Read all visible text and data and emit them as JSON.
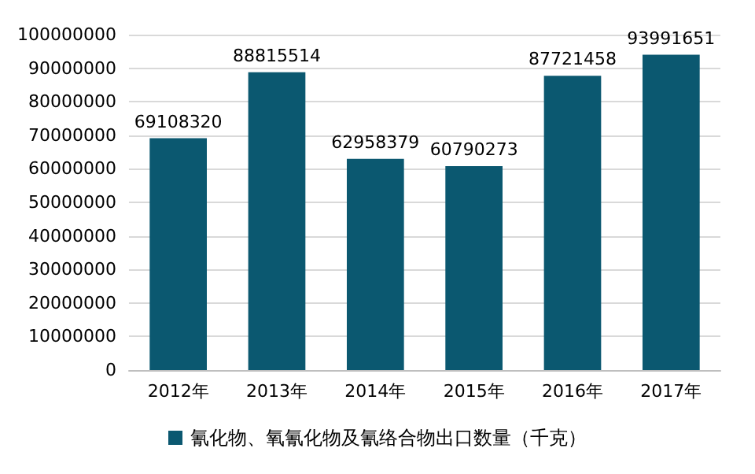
{
  "chart_data": {
    "type": "bar",
    "categories": [
      "2012年",
      "2013年",
      "2014年",
      "2015年",
      "2016年",
      "2017年"
    ],
    "series": [
      {
        "name": "氰化物、氧氰化物及氰络合物出口数量（千克）",
        "color": "#0b5870",
        "values": [
          69108320,
          88815514,
          62958379,
          60790273,
          87721458,
          93991651
        ]
      }
    ],
    "ylim": [
      0,
      100000000
    ],
    "yticks": [
      0,
      10000000,
      20000000,
      30000000,
      40000000,
      50000000,
      60000000,
      70000000,
      80000000,
      90000000,
      100000000
    ],
    "grid": "y",
    "legend": "bottom",
    "data_labels": true
  }
}
